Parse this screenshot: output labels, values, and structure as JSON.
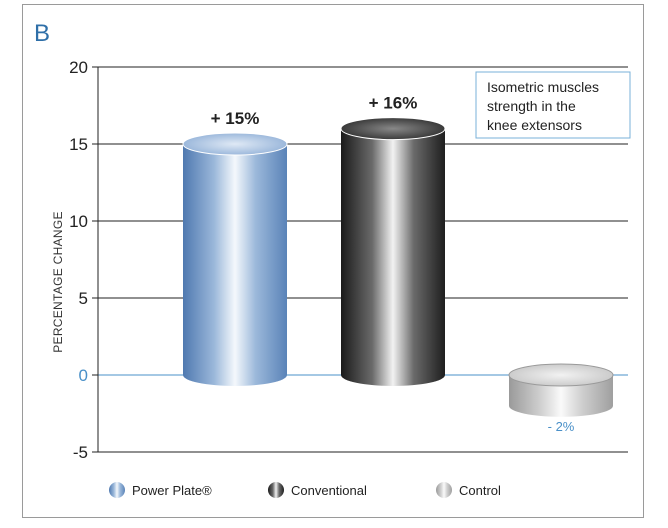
{
  "panel_letter": "B",
  "chart_data": {
    "type": "bar",
    "categories": [
      "Power Plate®",
      "Conventional",
      "Control"
    ],
    "values": [
      15,
      16,
      -2
    ],
    "data_labels": [
      "+ 15%",
      "+ 16%",
      "- 2%"
    ],
    "ylabel": "PERCENTAGE CHANGE",
    "ylim": [
      -5,
      20
    ],
    "yticks": [
      -5,
      0,
      5,
      10,
      15,
      20
    ],
    "grid": true,
    "annotation": [
      "Isometric muscles",
      "strength in the",
      "knee extensors"
    ],
    "legend_position": "bottom",
    "colors": {
      "Power Plate®": "#6f95c4",
      "Conventional": "#2a2a2a",
      "Control": "#b5b5b5",
      "zero_line": "#4a90c8",
      "annotation_border": "#7ab0d8"
    }
  }
}
